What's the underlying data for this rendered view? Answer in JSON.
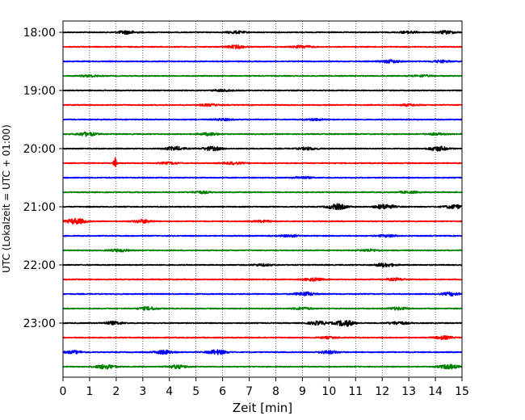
{
  "chart_data": {
    "type": "line",
    "title": "",
    "xlabel": "Zeit  [min]",
    "ylabel": "UTC (Lokalzeit = UTC + 01:00)",
    "x_ticks": [
      "0",
      "1",
      "2",
      "3",
      "4",
      "5",
      "6",
      "7",
      "8",
      "9",
      "10",
      "11",
      "12",
      "13",
      "14",
      "15"
    ],
    "xlim": [
      0,
      15
    ],
    "y_ticks": [
      "18:00",
      "19:00",
      "20:00",
      "21:00",
      "22:00",
      "23:00"
    ],
    "y_tick_traces": [
      0,
      4,
      8,
      12,
      16,
      20
    ],
    "grid": "vertical dotted lines at each minute",
    "trace_interval_minutes": 15,
    "color_cycle": [
      "#000000",
      "#ff0000",
      "#0000ff",
      "#008000"
    ],
    "series": [
      {
        "start": "18:00",
        "color": "#000000",
        "bursts": [
          [
            2.4,
            0.9
          ],
          [
            6.5,
            0.6
          ],
          [
            13.0,
            0.6
          ],
          [
            14.4,
            0.8
          ]
        ]
      },
      {
        "start": "18:15",
        "color": "#ff0000",
        "bursts": [
          [
            6.5,
            0.8
          ],
          [
            9.0,
            0.7
          ]
        ]
      },
      {
        "start": "18:30",
        "color": "#0000ff",
        "bursts": [
          [
            12.3,
            0.8
          ],
          [
            14.2,
            0.6
          ]
        ]
      },
      {
        "start": "18:45",
        "color": "#008000",
        "bursts": [
          [
            1.0,
            0.5
          ],
          [
            13.5,
            0.5
          ]
        ]
      },
      {
        "start": "19:00",
        "color": "#000000",
        "bursts": [
          [
            6.0,
            0.5
          ]
        ]
      },
      {
        "start": "19:15",
        "color": "#ff0000",
        "bursts": [
          [
            5.5,
            0.5
          ],
          [
            13.0,
            0.5
          ]
        ]
      },
      {
        "start": "19:30",
        "color": "#0000ff",
        "bursts": [
          [
            6.0,
            0.5
          ],
          [
            9.5,
            0.5
          ]
        ]
      },
      {
        "start": "19:45",
        "color": "#008000",
        "bursts": [
          [
            0.9,
            1.0
          ],
          [
            5.5,
            0.7
          ],
          [
            14.0,
            0.5
          ]
        ]
      },
      {
        "start": "20:00",
        "color": "#000000",
        "bursts": [
          [
            4.2,
            1.0
          ],
          [
            5.6,
            1.0
          ],
          [
            9.2,
            0.7
          ],
          [
            14.1,
            1.2
          ]
        ]
      },
      {
        "start": "20:15",
        "color": "#ff0000",
        "bursts": [
          [
            1.95,
            3.0
          ],
          [
            4.0,
            0.5
          ],
          [
            6.4,
            0.6
          ]
        ]
      },
      {
        "start": "20:30",
        "color": "#0000ff",
        "bursts": [
          [
            9.0,
            0.5
          ]
        ]
      },
      {
        "start": "20:45",
        "color": "#008000",
        "bursts": [
          [
            5.2,
            0.6
          ],
          [
            13.0,
            0.5
          ]
        ]
      },
      {
        "start": "21:00",
        "color": "#000000",
        "bursts": [
          [
            10.3,
            1.5
          ],
          [
            12.1,
            1.3
          ],
          [
            14.7,
            1.0
          ]
        ]
      },
      {
        "start": "21:15",
        "color": "#ff0000",
        "bursts": [
          [
            0.5,
            1.5
          ],
          [
            3.0,
            0.9
          ],
          [
            7.5,
            0.5
          ]
        ]
      },
      {
        "start": "21:30",
        "color": "#0000ff",
        "bursts": [
          [
            8.5,
            0.5
          ],
          [
            12.2,
            0.6
          ]
        ]
      },
      {
        "start": "21:45",
        "color": "#008000",
        "bursts": [
          [
            2.1,
            0.7
          ],
          [
            11.5,
            0.6
          ]
        ]
      },
      {
        "start": "22:00",
        "color": "#000000",
        "bursts": [
          [
            12.1,
            1.0
          ],
          [
            7.5,
            0.5
          ]
        ]
      },
      {
        "start": "22:15",
        "color": "#ff0000",
        "bursts": [
          [
            9.4,
            0.8
          ],
          [
            12.5,
            0.6
          ]
        ]
      },
      {
        "start": "22:30",
        "color": "#0000ff",
        "bursts": [
          [
            9.1,
            1.0
          ],
          [
            14.6,
            0.8
          ]
        ]
      },
      {
        "start": "22:45",
        "color": "#008000",
        "bursts": [
          [
            3.2,
            0.8
          ],
          [
            9.0,
            0.6
          ],
          [
            12.6,
            0.7
          ]
        ]
      },
      {
        "start": "23:00",
        "color": "#000000",
        "bursts": [
          [
            1.9,
            0.8
          ],
          [
            10.6,
            1.6
          ],
          [
            9.6,
            1.0
          ],
          [
            12.6,
            0.8
          ]
        ]
      },
      {
        "start": "23:15",
        "color": "#ff0000",
        "bursts": [
          [
            10.0,
            0.5
          ],
          [
            14.3,
            0.8
          ]
        ]
      },
      {
        "start": "23:30",
        "color": "#0000ff",
        "bursts": [
          [
            3.8,
            1.0
          ],
          [
            5.8,
            1.2
          ],
          [
            10.0,
            0.8
          ],
          [
            0.4,
            0.7
          ]
        ]
      },
      {
        "start": "23:45",
        "color": "#008000",
        "bursts": [
          [
            1.6,
            1.2
          ],
          [
            4.3,
            0.9
          ],
          [
            14.5,
            1.2
          ]
        ]
      }
    ]
  }
}
